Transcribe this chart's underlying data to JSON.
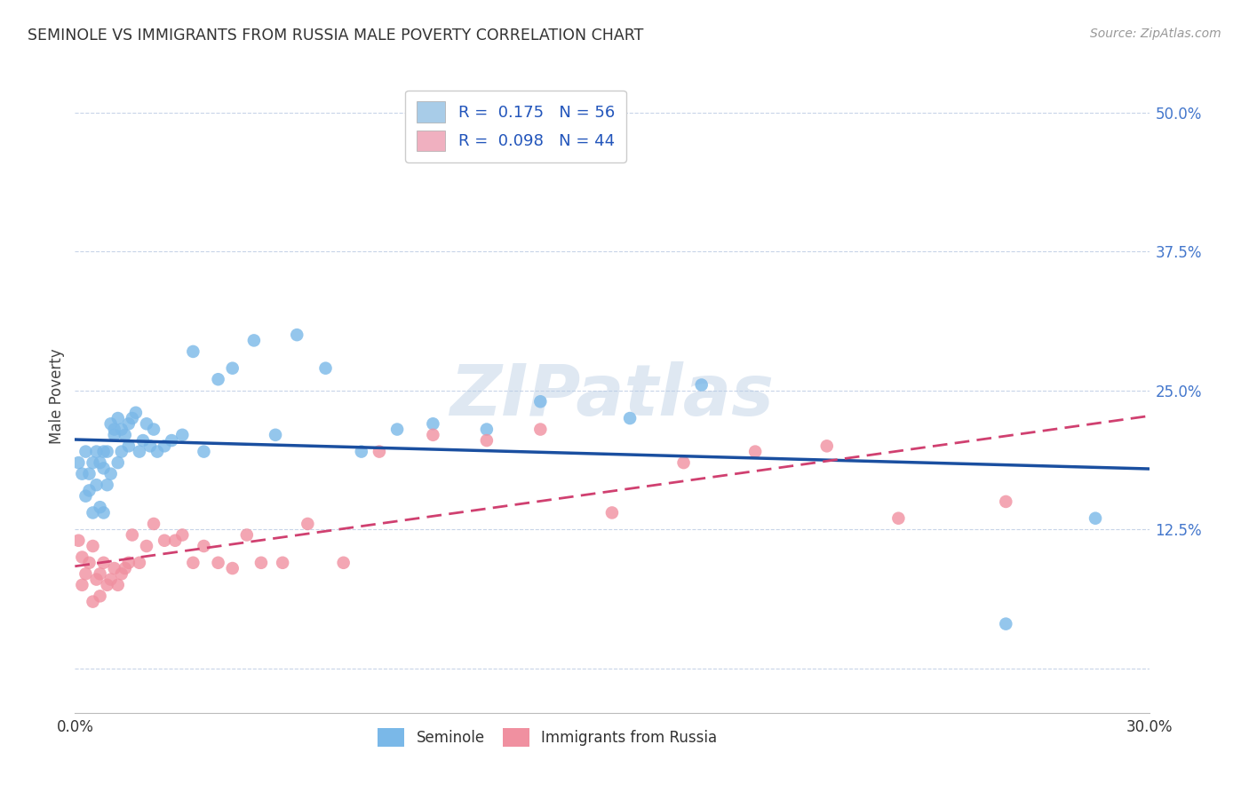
{
  "title": "SEMINOLE VS IMMIGRANTS FROM RUSSIA MALE POVERTY CORRELATION CHART",
  "source": "Source: ZipAtlas.com",
  "ylabel": "Male Poverty",
  "xlim": [
    0.0,
    0.3
  ],
  "ylim": [
    -0.04,
    0.53
  ],
  "yticks": [
    0.0,
    0.125,
    0.25,
    0.375,
    0.5
  ],
  "ytick_labels": [
    "",
    "12.5%",
    "25.0%",
    "37.5%",
    "50.0%"
  ],
  "watermark": "ZIPatlas",
  "series1_name": "Seminole",
  "series2_name": "Immigrants from Russia",
  "series1_color": "#7ab8e8",
  "series2_color": "#f090a0",
  "series1_line_color": "#1a4fa0",
  "series2_line_color": "#d04070",
  "legend1_patch_color": "#a8cce8",
  "legend2_patch_color": "#f0b0c0",
  "background_color": "#ffffff",
  "grid_color": "#c8d4e8",
  "R1": "0.175",
  "N1": "56",
  "R2": "0.098",
  "N2": "44",
  "seminole_x": [
    0.001,
    0.002,
    0.003,
    0.003,
    0.004,
    0.004,
    0.005,
    0.005,
    0.006,
    0.006,
    0.007,
    0.007,
    0.008,
    0.008,
    0.008,
    0.009,
    0.009,
    0.01,
    0.01,
    0.011,
    0.011,
    0.012,
    0.012,
    0.013,
    0.013,
    0.014,
    0.015,
    0.015,
    0.016,
    0.017,
    0.018,
    0.019,
    0.02,
    0.021,
    0.022,
    0.023,
    0.025,
    0.027,
    0.03,
    0.033,
    0.036,
    0.04,
    0.044,
    0.05,
    0.056,
    0.062,
    0.07,
    0.08,
    0.09,
    0.1,
    0.115,
    0.13,
    0.155,
    0.175,
    0.26,
    0.285
  ],
  "seminole_y": [
    0.185,
    0.175,
    0.155,
    0.195,
    0.16,
    0.175,
    0.185,
    0.14,
    0.195,
    0.165,
    0.185,
    0.145,
    0.195,
    0.18,
    0.14,
    0.195,
    0.165,
    0.175,
    0.22,
    0.21,
    0.215,
    0.185,
    0.225,
    0.215,
    0.195,
    0.21,
    0.22,
    0.2,
    0.225,
    0.23,
    0.195,
    0.205,
    0.22,
    0.2,
    0.215,
    0.195,
    0.2,
    0.205,
    0.21,
    0.285,
    0.195,
    0.26,
    0.27,
    0.295,
    0.21,
    0.3,
    0.27,
    0.195,
    0.215,
    0.22,
    0.215,
    0.24,
    0.225,
    0.255,
    0.04,
    0.135
  ],
  "russia_x": [
    0.001,
    0.002,
    0.002,
    0.003,
    0.004,
    0.005,
    0.005,
    0.006,
    0.007,
    0.007,
    0.008,
    0.009,
    0.01,
    0.011,
    0.012,
    0.013,
    0.014,
    0.015,
    0.016,
    0.018,
    0.02,
    0.022,
    0.025,
    0.028,
    0.03,
    0.033,
    0.036,
    0.04,
    0.044,
    0.048,
    0.052,
    0.058,
    0.065,
    0.075,
    0.085,
    0.1,
    0.115,
    0.13,
    0.15,
    0.17,
    0.19,
    0.21,
    0.23,
    0.26
  ],
  "russia_y": [
    0.115,
    0.1,
    0.075,
    0.085,
    0.095,
    0.11,
    0.06,
    0.08,
    0.085,
    0.065,
    0.095,
    0.075,
    0.08,
    0.09,
    0.075,
    0.085,
    0.09,
    0.095,
    0.12,
    0.095,
    0.11,
    0.13,
    0.115,
    0.115,
    0.12,
    0.095,
    0.11,
    0.095,
    0.09,
    0.12,
    0.095,
    0.095,
    0.13,
    0.095,
    0.195,
    0.21,
    0.205,
    0.215,
    0.14,
    0.185,
    0.195,
    0.2,
    0.135,
    0.15
  ]
}
